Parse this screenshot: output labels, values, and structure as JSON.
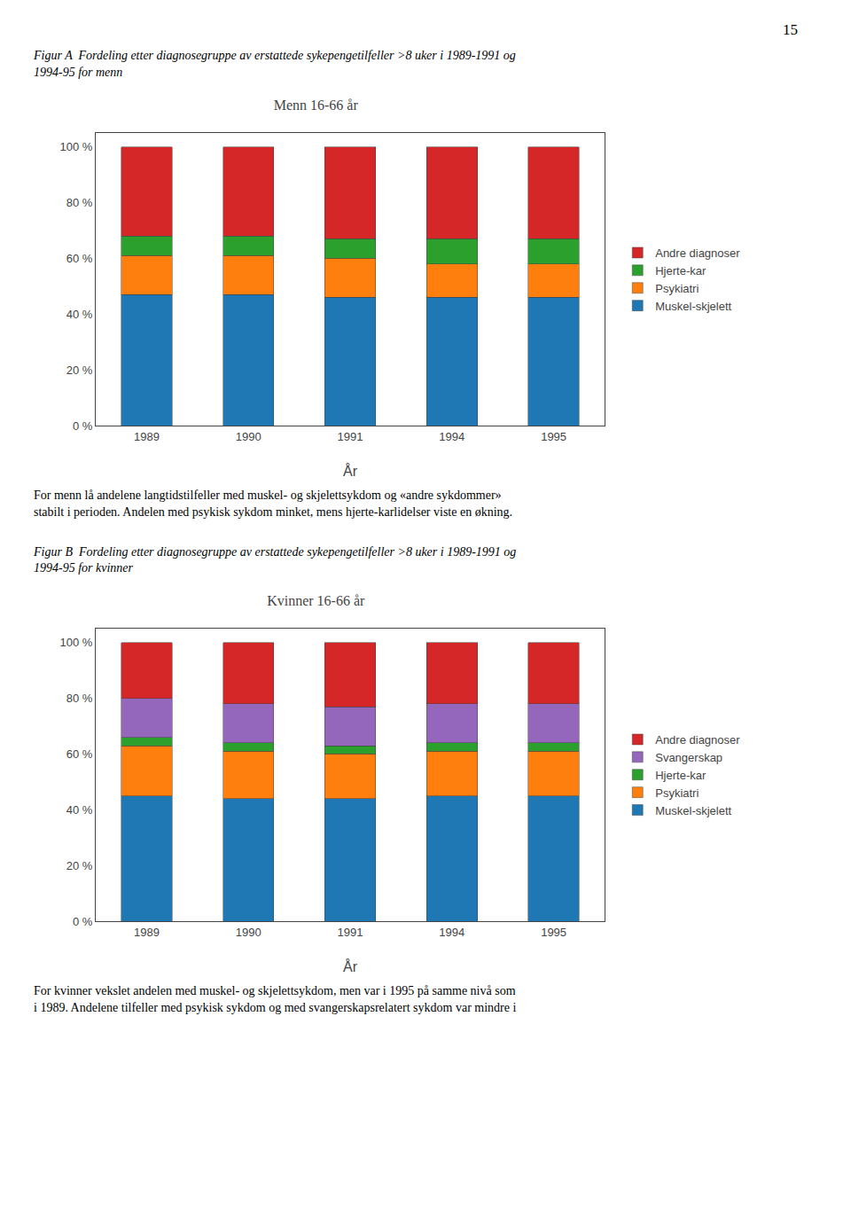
{
  "chart_data": [
    {
      "type": "bar",
      "stacked": true,
      "title": "Menn 16-66 år",
      "subtitle": "Figur A  Fordeling etter diagnosegruppe av erstattede sykepengetilfeller >8 uker i 1989-1991 og\n1994-95 for menn",
      "xlabel": "År",
      "categories": [
        "1989",
        "1990",
        "1991",
        "1994",
        "1995"
      ],
      "series": [
        {
          "name": "Muskel-skjelett",
          "color": "#1f77b4",
          "values": [
            47,
            47,
            46,
            46,
            46
          ]
        },
        {
          "name": "Psykiatri",
          "color": "#ff7f0e",
          "values": [
            14,
            14,
            14,
            12,
            12
          ]
        },
        {
          "name": "Hjerte-kar",
          "color": "#2ca02c",
          "values": [
            7,
            7,
            7,
            9,
            9
          ]
        },
        {
          "name": "Andre diagnoser",
          "color": "#d62728",
          "values": [
            32,
            32,
            33,
            33,
            33
          ]
        }
      ],
      "ylim": [
        0,
        105
      ],
      "yticks": [
        {
          "value": 0,
          "label": "0 %"
        },
        {
          "value": 20,
          "label": "20 %"
        },
        {
          "value": 40,
          "label": "40 %"
        },
        {
          "value": 60,
          "label": "60 %"
        },
        {
          "value": 80,
          "label": "80 %"
        },
        {
          "value": 100,
          "label": "100 %"
        }
      ],
      "grid": false,
      "legend": "right",
      "annotations": [
        "For menn lå andelene langtidstilfeller med muskel- og skjelettsykdom og «andre sykdommer»\nstabilt i perioden. Andelen med psykisk sykdom minket, mens hjerte-karlidelser viste en økning.",
        "15"
      ]
    },
    {
      "type": "bar",
      "stacked": true,
      "title": "Kvinner 16-66 år",
      "subtitle": "Figur B  Fordeling etter diagnosegruppe av erstattede sykepengetilfeller >8 uker i 1989-1991 og\n1994-95 for kvinner",
      "xlabel": "År",
      "categories": [
        "1989",
        "1990",
        "1991",
        "1994",
        "1995"
      ],
      "series": [
        {
          "name": "Muskel-skjelett",
          "color": "#1f77b4",
          "values": [
            45,
            44,
            44,
            45,
            45
          ]
        },
        {
          "name": "Psykiatri",
          "color": "#ff7f0e",
          "values": [
            18,
            17,
            16,
            16,
            16
          ]
        },
        {
          "name": "Hjerte-kar",
          "color": "#2ca02c",
          "values": [
            3,
            3,
            3,
            3,
            3
          ]
        },
        {
          "name": "Svangerskap",
          "color": "#9467bd",
          "values": [
            14,
            14,
            14,
            14,
            14
          ]
        },
        {
          "name": "Andre diagnoser",
          "color": "#d62728",
          "values": [
            20,
            22,
            23,
            22,
            22
          ]
        }
      ],
      "ylim": [
        0,
        105
      ],
      "yticks": [
        {
          "value": 0,
          "label": "0 %"
        },
        {
          "value": 20,
          "label": "20 %"
        },
        {
          "value": 40,
          "label": "40 %"
        },
        {
          "value": 60,
          "label": "60 %"
        },
        {
          "value": 80,
          "label": "80 %"
        },
        {
          "value": 100,
          "label": "100 %"
        }
      ],
      "grid": false,
      "legend": "right",
      "annotations": [
        "For kvinner vekslet andelen med muskel- og skjelettsykdom, men var i 1995 på samme nivå som\ni 1989. Andelene tilfeller med psykisk sykdom og med svangerskapsrelatert sykdom var mindre i"
      ]
    }
  ]
}
